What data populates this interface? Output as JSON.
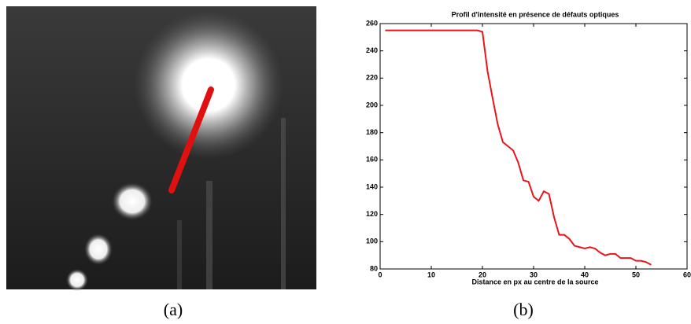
{
  "chart_data": {
    "type": "line",
    "title": "Profil d'intensité en présence de défauts optiques",
    "x_label": "Distance en px au centre de la source",
    "x": [
      1,
      2,
      3,
      4,
      5,
      6,
      7,
      8,
      9,
      10,
      11,
      12,
      13,
      14,
      15,
      16,
      17,
      18,
      19,
      20,
      21,
      22,
      23,
      24,
      25,
      26,
      27,
      28,
      29,
      30,
      31,
      32,
      33,
      34,
      35,
      36,
      37,
      38,
      39,
      40,
      41,
      42,
      43,
      44,
      45,
      46,
      47,
      48,
      49,
      50,
      51,
      52,
      53
    ],
    "values": [
      255,
      255,
      255,
      255,
      255,
      255,
      255,
      255,
      255,
      255,
      255,
      255,
      255,
      255,
      255,
      255,
      255,
      255,
      255,
      254,
      225,
      205,
      186,
      173,
      170,
      167,
      158,
      145,
      144,
      133,
      130,
      137,
      135,
      118,
      105,
      105,
      102,
      97,
      96,
      95,
      96,
      95,
      92,
      90,
      91,
      91,
      88,
      88,
      88,
      86,
      86,
      85,
      83
    ],
    "color": "#e8151b",
    "xlim": [
      0,
      60
    ],
    "xticks": [
      0,
      10,
      20,
      30,
      40,
      50,
      60
    ],
    "ylim": [
      80,
      260
    ],
    "yticks": [
      80,
      100,
      120,
      140,
      160,
      180,
      200,
      220,
      240,
      260
    ],
    "grid": false
  },
  "captions": [
    "(a)",
    "(b)"
  ]
}
